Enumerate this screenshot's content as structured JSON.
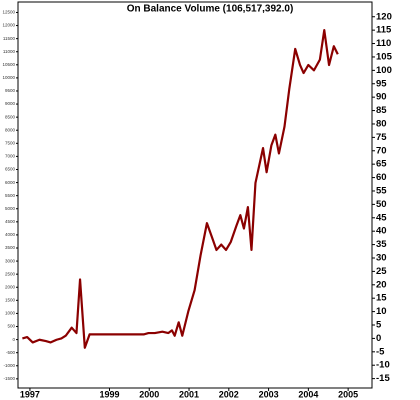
{
  "chart_data": {
    "type": "line",
    "title": "On Balance Volume (106,517,392.0)",
    "x": [
      1996.81,
      1996.93,
      1997.07,
      1997.24,
      1997.4,
      1997.52,
      1997.67,
      1997.79,
      1997.9,
      1998.05,
      1998.17,
      1998.26,
      1998.38,
      1998.5,
      1998.67,
      1999.86,
      1999.98,
      2000.14,
      2000.33,
      2000.48,
      2000.57,
      2000.64,
      2000.74,
      2000.83,
      2000.98,
      2001.14,
      2001.29,
      2001.45,
      2001.57,
      2001.69,
      2001.81,
      2001.93,
      2002.05,
      2002.19,
      2002.29,
      2002.38,
      2002.48,
      2002.57,
      2002.67,
      2002.86,
      2002.95,
      2003.07,
      2003.17,
      2003.26,
      2003.4,
      2003.52,
      2003.67,
      2003.79,
      2003.88,
      2004.0,
      2004.14,
      2004.29,
      2004.4,
      2004.52,
      2004.64,
      2004.74
    ],
    "series": [
      {
        "name": "On Balance Volume",
        "color": "#8b0000",
        "values": [
          0,
          0.5,
          -1.5,
          -0.5,
          -1,
          -1.5,
          -0.5,
          0,
          1,
          4,
          2,
          22,
          -3.5,
          1.5,
          1.5,
          1.5,
          2,
          2,
          2.5,
          2,
          3,
          1,
          6,
          1,
          10,
          18,
          31,
          43,
          38,
          33,
          35,
          33,
          36,
          42,
          46,
          41,
          49,
          33,
          58,
          71,
          62,
          72,
          76,
          69,
          79,
          93,
          108,
          102,
          99,
          102,
          100,
          104,
          115,
          102,
          109,
          106
        ]
      }
    ],
    "xlim": [
      1996.7,
      2005.6
    ],
    "xticks": [
      1997,
      1999,
      2000,
      2001,
      2002,
      2003,
      2004,
      2005
    ],
    "ylim": [
      -18.5,
      125.5
    ],
    "yticks": [
      120,
      115,
      110,
      105,
      100,
      95,
      90,
      85,
      80,
      75,
      70,
      65,
      60,
      55,
      50,
      45,
      40,
      35,
      30,
      25,
      20,
      15,
      10,
      5,
      0,
      -5,
      -10,
      -15
    ],
    "y2lim": [
      -1850,
      12900
    ],
    "y2ticks": [
      12500,
      12000,
      11500,
      11000,
      10500,
      10000,
      9500,
      9000,
      8500,
      8000,
      7500,
      7000,
      6500,
      6000,
      5500,
      5000,
      4500,
      4000,
      3500,
      3000,
      2500,
      2000,
      1500,
      1000,
      500,
      0,
      -500,
      -1000,
      -1500
    ]
  }
}
